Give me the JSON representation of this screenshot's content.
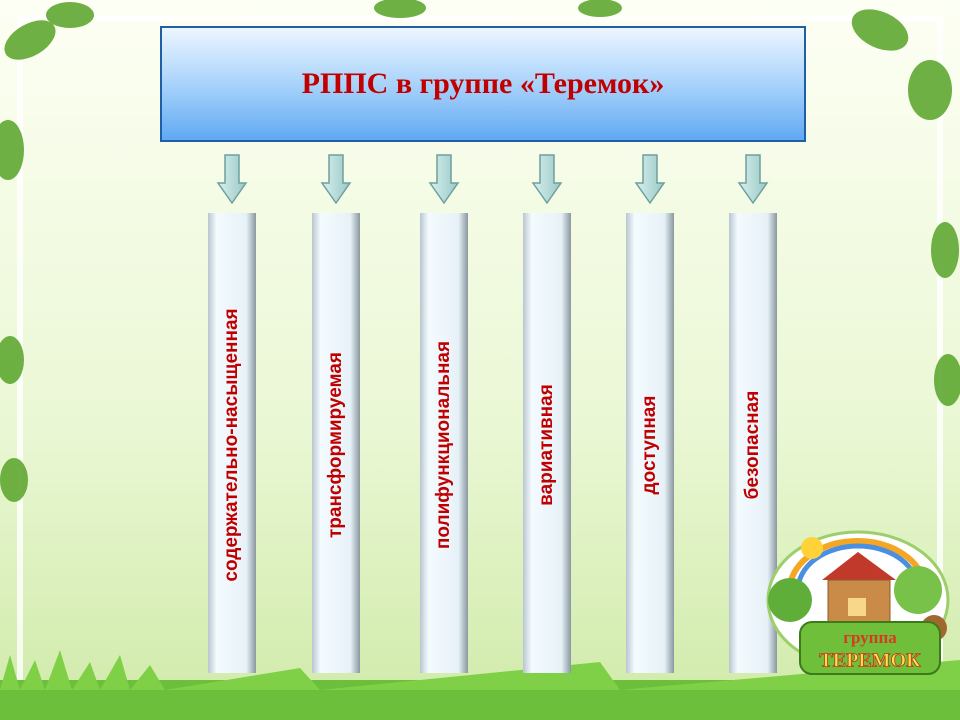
{
  "header": {
    "title": "РППС в группе «Теремок»"
  },
  "columns": [
    {
      "label": "содержательно-насыщенная"
    },
    {
      "label": "трансформируемая"
    },
    {
      "label": "полифункциональная"
    },
    {
      "label": "вариативная"
    },
    {
      "label": "доступная"
    },
    {
      "label": "безопасная"
    }
  ],
  "logo": {
    "line1": "группа",
    "line2": "ТЕРЕМОК"
  }
}
